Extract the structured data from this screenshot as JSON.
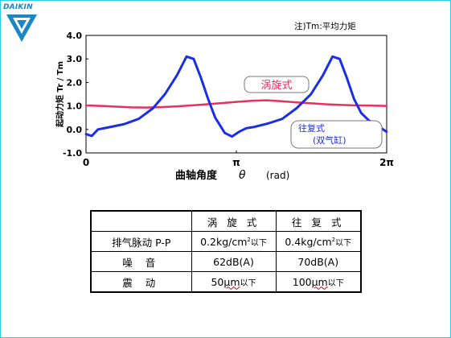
{
  "logo": {
    "brand": "DAIKIN"
  },
  "note": "注)Tm:平均力矩",
  "colors": {
    "scroll": "#e8305c",
    "recip": "#1a2ee8",
    "frame": "#27d0e8",
    "brand": "#1a86c4"
  },
  "chart_data": {
    "type": "line",
    "xlabel_main": "曲轴角度",
    "xlabel_theta": "θ",
    "xlabel_unit": "(rad)",
    "ylabel": "起动力矩 Tr / Tm",
    "y_ticks": [
      "4.0",
      "3.0",
      "2.0",
      "1.0",
      "0.0",
      "-1.0"
    ],
    "ylim": [
      -1.0,
      4.0
    ],
    "x_ticks": [
      "0",
      "π",
      "2π"
    ],
    "xlim": [
      0,
      6.283
    ],
    "series": [
      {
        "name": "涡旋式",
        "color": "#e8305c",
        "x": [
          0,
          0.31,
          0.63,
          0.94,
          1.26,
          1.57,
          1.88,
          2.2,
          2.51,
          2.83,
          3.14,
          3.46,
          3.77,
          4.08,
          4.4,
          4.71,
          5.03,
          5.34,
          5.65,
          5.97,
          6.28
        ],
        "y": [
          1.02,
          1.0,
          0.97,
          0.94,
          0.93,
          0.95,
          0.98,
          1.02,
          1.07,
          1.12,
          1.17,
          1.22,
          1.24,
          1.2,
          1.15,
          1.11,
          1.07,
          1.04,
          1.02,
          1.01,
          1.0
        ]
      },
      {
        "name": "往复式",
        "label_sub": "(双气缸)",
        "color": "#1a2ee8",
        "x": [
          0,
          0.12,
          0.25,
          0.5,
          0.79,
          1.1,
          1.4,
          1.65,
          1.9,
          2.1,
          2.25,
          2.4,
          2.55,
          2.7,
          2.9,
          3.05,
          3.2,
          3.35,
          3.5,
          3.8,
          4.1,
          4.4,
          4.7,
          4.95,
          5.15,
          5.3,
          5.45,
          5.6,
          5.75,
          5.9,
          6.1,
          6.28
        ],
        "y": [
          -0.2,
          -0.28,
          0.0,
          0.1,
          0.22,
          0.45,
          0.9,
          1.5,
          2.3,
          3.1,
          3.0,
          2.2,
          1.3,
          0.5,
          -0.15,
          -0.3,
          -0.1,
          0.05,
          0.1,
          0.25,
          0.45,
          0.9,
          1.5,
          2.3,
          3.1,
          3.0,
          2.2,
          1.3,
          0.7,
          0.4,
          0.15,
          -0.1
        ]
      }
    ]
  },
  "table": {
    "headers": [
      "",
      "涡 旋 式",
      "往 复 式"
    ],
    "rows": [
      {
        "label": "排气脉动 P-P",
        "scroll_num": "0.2kg/cm",
        "scroll_sup": "2",
        "scroll_tail": "以下",
        "recip_num": "0.4kg/cm",
        "recip_sup": "2",
        "recip_tail": "以下"
      },
      {
        "label": "噪  音",
        "scroll": "62dB(A)",
        "recip": "70dB(A)"
      },
      {
        "label": "震  动",
        "scroll_num": "50",
        "scroll_unit": "μm",
        "scroll_tail": "以下",
        "recip_num": "100",
        "recip_unit": "μm",
        "recip_tail": "以下"
      }
    ]
  }
}
